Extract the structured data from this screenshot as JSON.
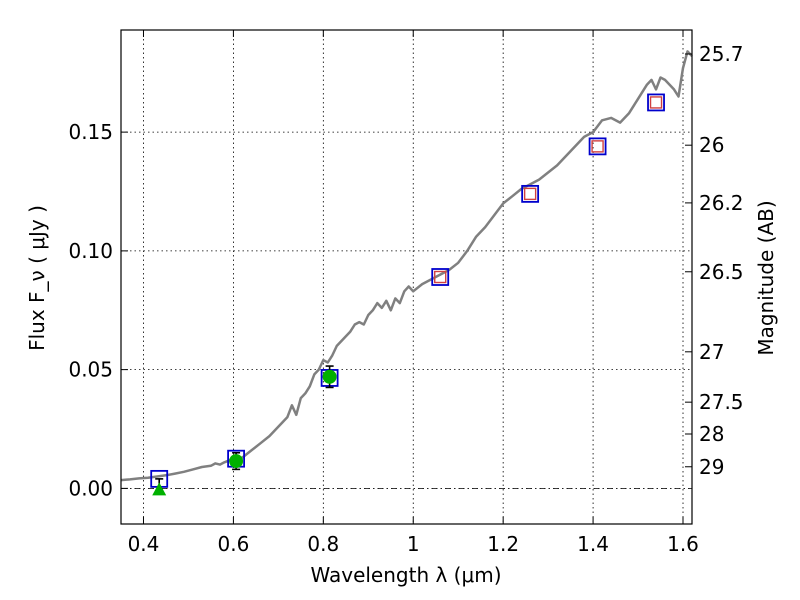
{
  "chart_data": {
    "type": "line",
    "xlabel": "Wavelength  λ (μm)",
    "ylabel": "Flux  F_ν  ( μJy )",
    "ylabel_right": "Magnitude (AB)",
    "xlim": [
      0.35,
      1.62
    ],
    "ylim": [
      -0.015,
      0.193
    ],
    "grid": true,
    "x_ticks": [
      {
        "v": 0.4,
        "label": "0.4"
      },
      {
        "v": 0.6,
        "label": "0.6"
      },
      {
        "v": 0.8,
        "label": "0.8"
      },
      {
        "v": 1.0,
        "label": "1"
      },
      {
        "v": 1.2,
        "label": "1.2"
      },
      {
        "v": 1.4,
        "label": "1.4"
      },
      {
        "v": 1.6,
        "label": "1.6"
      }
    ],
    "y_ticks": [
      {
        "v": 0.0,
        "label": "0.00"
      },
      {
        "v": 0.05,
        "label": "0.05"
      },
      {
        "v": 0.1,
        "label": "0.10"
      },
      {
        "v": 0.15,
        "label": "0.15"
      }
    ],
    "mag_ticks": [
      {
        "flux": 0.1829,
        "label": "25.7"
      },
      {
        "flux": 0.1445,
        "label": "26"
      },
      {
        "flux": 0.1202,
        "label": "26.2"
      },
      {
        "flux": 0.0912,
        "label": "26.5"
      },
      {
        "flux": 0.0575,
        "label": "27"
      },
      {
        "flux": 0.0363,
        "label": "27.5"
      },
      {
        "flux": 0.0229,
        "label": "28"
      },
      {
        "flux": 0.0091,
        "label": "29"
      }
    ],
    "series": [
      {
        "kind": "model-spectrum",
        "color": "#808080",
        "points": [
          [
            0.35,
            0.0035
          ],
          [
            0.37,
            0.0038
          ],
          [
            0.39,
            0.0042
          ],
          [
            0.41,
            0.0045
          ],
          [
            0.43,
            0.005
          ],
          [
            0.45,
            0.0055
          ],
          [
            0.47,
            0.0062
          ],
          [
            0.49,
            0.007
          ],
          [
            0.51,
            0.008
          ],
          [
            0.53,
            0.009
          ],
          [
            0.55,
            0.0095
          ],
          [
            0.56,
            0.0105
          ],
          [
            0.57,
            0.01
          ],
          [
            0.58,
            0.011
          ],
          [
            0.6,
            0.0125
          ],
          [
            0.62,
            0.013
          ],
          [
            0.64,
            0.016
          ],
          [
            0.66,
            0.019
          ],
          [
            0.68,
            0.022
          ],
          [
            0.7,
            0.026
          ],
          [
            0.72,
            0.03
          ],
          [
            0.73,
            0.035
          ],
          [
            0.74,
            0.031
          ],
          [
            0.75,
            0.038
          ],
          [
            0.76,
            0.04
          ],
          [
            0.77,
            0.043
          ],
          [
            0.78,
            0.048
          ],
          [
            0.79,
            0.05
          ],
          [
            0.8,
            0.054
          ],
          [
            0.81,
            0.053
          ],
          [
            0.82,
            0.056
          ],
          [
            0.83,
            0.06
          ],
          [
            0.84,
            0.062
          ],
          [
            0.85,
            0.064
          ],
          [
            0.86,
            0.066
          ],
          [
            0.87,
            0.069
          ],
          [
            0.88,
            0.07
          ],
          [
            0.89,
            0.069
          ],
          [
            0.9,
            0.073
          ],
          [
            0.91,
            0.075
          ],
          [
            0.92,
            0.078
          ],
          [
            0.93,
            0.076
          ],
          [
            0.94,
            0.079
          ],
          [
            0.95,
            0.075
          ],
          [
            0.96,
            0.08
          ],
          [
            0.97,
            0.078
          ],
          [
            0.98,
            0.083
          ],
          [
            0.99,
            0.085
          ],
          [
            1.0,
            0.083
          ],
          [
            1.02,
            0.086
          ],
          [
            1.04,
            0.088
          ],
          [
            1.06,
            0.09
          ],
          [
            1.08,
            0.092
          ],
          [
            1.1,
            0.095
          ],
          [
            1.12,
            0.1
          ],
          [
            1.14,
            0.106
          ],
          [
            1.16,
            0.11
          ],
          [
            1.18,
            0.115
          ],
          [
            1.2,
            0.12
          ],
          [
            1.22,
            0.123
          ],
          [
            1.24,
            0.126
          ],
          [
            1.26,
            0.128
          ],
          [
            1.28,
            0.13
          ],
          [
            1.3,
            0.133
          ],
          [
            1.32,
            0.136
          ],
          [
            1.34,
            0.14
          ],
          [
            1.36,
            0.144
          ],
          [
            1.38,
            0.148
          ],
          [
            1.4,
            0.15
          ],
          [
            1.42,
            0.155
          ],
          [
            1.44,
            0.156
          ],
          [
            1.46,
            0.154
          ],
          [
            1.48,
            0.158
          ],
          [
            1.5,
            0.164
          ],
          [
            1.52,
            0.17
          ],
          [
            1.53,
            0.172
          ],
          [
            1.54,
            0.168
          ],
          [
            1.55,
            0.173
          ],
          [
            1.56,
            0.172
          ],
          [
            1.57,
            0.17
          ],
          [
            1.58,
            0.168
          ],
          [
            1.59,
            0.165
          ],
          [
            1.6,
            0.177
          ],
          [
            1.61,
            0.184
          ],
          [
            1.62,
            0.182
          ]
        ]
      },
      {
        "kind": "model-photometry",
        "marker": "open-square",
        "color": "#0000cc",
        "points": [
          [
            0.435,
            0.004
          ],
          [
            0.606,
            0.0125
          ],
          [
            0.814,
            0.0465
          ],
          [
            1.06,
            0.089
          ],
          [
            1.26,
            0.124
          ],
          [
            1.41,
            0.144
          ],
          [
            1.54,
            0.1625
          ]
        ]
      },
      {
        "kind": "observed-photometry",
        "marker": "open-square",
        "color": "#d04040",
        "points": [
          [
            1.06,
            0.089
          ],
          [
            1.26,
            0.124
          ],
          [
            1.41,
            0.144
          ],
          [
            1.54,
            0.1625
          ]
        ]
      },
      {
        "kind": "observed-photometry",
        "marker": "filled-circle",
        "color": "#00b000",
        "points": [
          {
            "x": 0.606,
            "y": 0.0115,
            "err": 0.0035
          },
          {
            "x": 0.814,
            "y": 0.047,
            "err": 0.0045
          }
        ]
      },
      {
        "kind": "upper-limit",
        "marker": "filled-triangle",
        "color": "#00b000",
        "points": [
          {
            "x": 0.435,
            "y": 0.0,
            "err_up": 0.004
          }
        ]
      }
    ]
  }
}
